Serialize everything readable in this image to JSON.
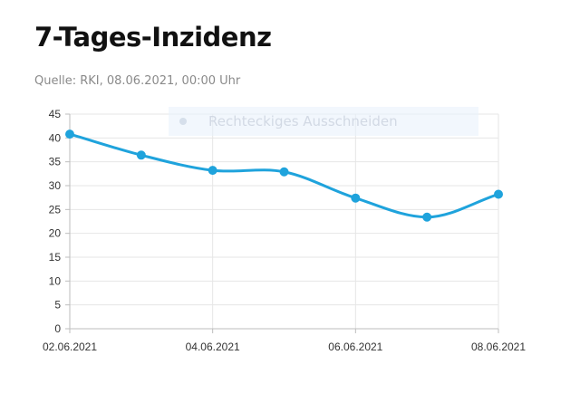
{
  "header": {
    "title": "7-Tages-Inzidenz",
    "source": "Quelle: RKI, 08.06.2021, 00:00 Uhr"
  },
  "overlay": {
    "label": "Rechteckiges Ausschneiden"
  },
  "chart_data": {
    "type": "line",
    "x": [
      "02.06.2021",
      "03.06.2021",
      "04.06.2021",
      "05.06.2021",
      "06.06.2021",
      "07.06.2021",
      "08.06.2021"
    ],
    "series": [
      {
        "values": [
          40.8,
          36.4,
          33.2,
          32.9,
          27.4,
          23.4,
          28.2
        ]
      }
    ],
    "x_tick_labels": [
      "02.06.2021",
      "04.06.2021",
      "06.06.2021",
      "08.06.2021"
    ],
    "y_ticks": [
      0,
      5,
      10,
      15,
      20,
      25,
      30,
      35,
      40,
      45
    ],
    "ylim": [
      0,
      45
    ],
    "grid": true,
    "smooth": true,
    "line_color": "#1fa3dc",
    "title": "7-Tages-Inzidenz",
    "xlabel": "",
    "ylabel": ""
  }
}
